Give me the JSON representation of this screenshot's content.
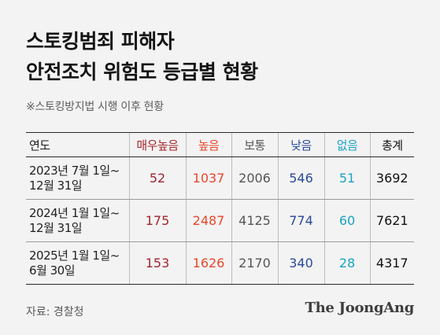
{
  "title_line1": "스토킹범죄 피해자",
  "title_line2": "안전조치 위험도 등급별 현황",
  "subtitle": "※스토킹방지법 시행 이후 현황",
  "source": "자료: 경찰청",
  "brand": "The JoongAng",
  "colors": {
    "very_high": "#a3262e",
    "high": "#e8462a",
    "normal": "#555555",
    "low": "#2b4a9a",
    "none": "#19a3c4",
    "total": "#111111"
  },
  "chart_data": {
    "type": "table",
    "title": "스토킹범죄 피해자 안전조치 위험도 등급별 현황",
    "subtitle": "※스토킹방지법 시행 이후 현황",
    "columns": [
      "연도",
      "매우높음",
      "높음",
      "보통",
      "낮음",
      "없음",
      "총계"
    ],
    "rows": [
      {
        "period": [
          "2023년 7월 1일~",
          "12월 31일"
        ],
        "values": [
          "52",
          "1037",
          "2006",
          "546",
          "51",
          "3692"
        ]
      },
      {
        "period": [
          "2024년 1월 1일~",
          "12월 31일"
        ],
        "values": [
          "175",
          "2487",
          "4125",
          "774",
          "60",
          "7621"
        ]
      },
      {
        "period": [
          "2025년 1월 1일~",
          "6월 30일"
        ],
        "values": [
          "153",
          "1626",
          "2170",
          "340",
          "28",
          "4317"
        ]
      }
    ]
  }
}
